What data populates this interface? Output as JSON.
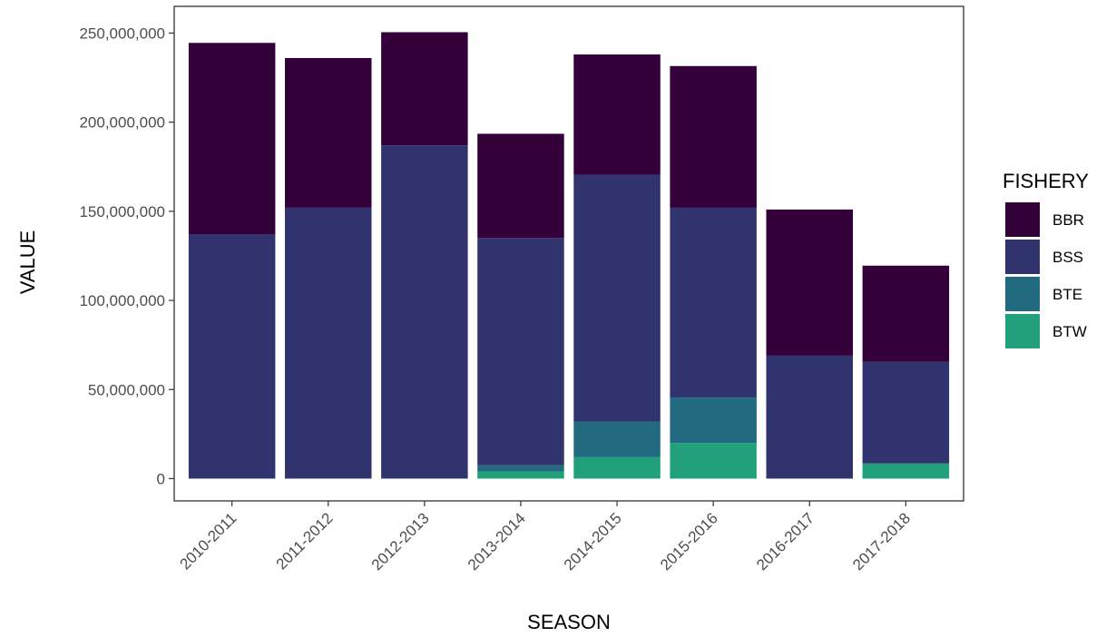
{
  "chart_data": {
    "type": "bar",
    "stacked": true,
    "categories": [
      "2010-2011",
      "2011-2012",
      "2012-2013",
      "2013-2014",
      "2014-2015",
      "2015-2016",
      "2016-2017",
      "2017-2018"
    ],
    "series": [
      {
        "name": "BTW",
        "color": "#22a07b",
        "values": [
          0,
          0,
          0,
          4000000,
          12000000,
          20000000,
          0,
          8500000
        ]
      },
      {
        "name": "BTE",
        "color": "#226a80",
        "values": [
          0,
          0,
          0,
          3500000,
          20000000,
          25500000,
          0,
          0
        ]
      },
      {
        "name": "BSS",
        "color": "#31336f",
        "values": [
          137000000,
          152000000,
          187000000,
          127500000,
          138500000,
          106500000,
          69000000,
          57000000
        ]
      },
      {
        "name": "BBR",
        "color": "#330039",
        "values": [
          107500000,
          84000000,
          63500000,
          58500000,
          67500000,
          79500000,
          82000000,
          54000000
        ]
      }
    ],
    "ylim": [
      -12500000,
      265000000
    ],
    "yticks": [
      0,
      50000000,
      100000000,
      150000000,
      200000000,
      250000000
    ],
    "ytick_labels": [
      "0",
      "50,000,000",
      "100,000,000",
      "150,000,000",
      "200,000,000",
      "250,000,000"
    ],
    "xlabel": "SEASON",
    "ylabel": "VALUE",
    "grid": false,
    "legend": {
      "title": "FISHERY",
      "position": "right",
      "entries": [
        "BBR",
        "BSS",
        "BTE",
        "BTW"
      ]
    }
  }
}
